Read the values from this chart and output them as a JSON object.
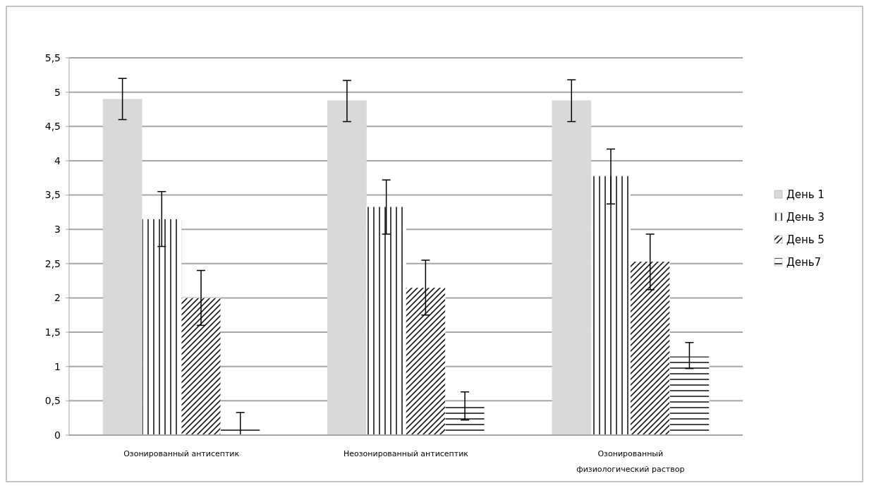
{
  "chart_data": {
    "type": "bar",
    "categories": [
      "Озонированный антисептик",
      "Неозонированный антисептик",
      "Озонированный физиологический раствор"
    ],
    "series": [
      {
        "name": "День 1",
        "color": "#d9d9d9",
        "values": [
          4.9,
          4.88,
          4.88
        ],
        "errors": [
          [
            4.6,
            5.2
          ],
          [
            4.57,
            5.17
          ],
          [
            4.57,
            5.18
          ]
        ]
      },
      {
        "name": "День 3",
        "color": "#ffffff",
        "values": [
          3.15,
          3.33,
          3.78
        ],
        "errors": [
          [
            2.75,
            3.55
          ],
          [
            2.93,
            3.72
          ],
          [
            3.37,
            4.17
          ]
        ]
      },
      {
        "name": "День 5",
        "color": "#ffffff",
        "values": [
          2.0,
          2.15,
          2.53
        ],
        "errors": [
          [
            1.6,
            2.4
          ],
          [
            1.75,
            2.55
          ],
          [
            2.12,
            2.93
          ]
        ]
      },
      {
        "name": "День7",
        "color": "#ffffff",
        "values": [
          0.1,
          0.42,
          1.15
        ],
        "errors": [
          [
            0,
            0.33
          ],
          [
            0.22,
            0.63
          ],
          [
            0.97,
            1.35
          ]
        ]
      }
    ],
    "ylim": [
      0,
      5.5
    ],
    "yticks": [
      0,
      {
        "value": 0.5,
        "label": "0,5"
      },
      1,
      {
        "value": 1.5,
        "label": "1,5"
      },
      2,
      {
        "value": 2.5,
        "label": "2,5"
      },
      3,
      {
        "value": 3.5,
        "label": "3,5"
      },
      4,
      {
        "value": 4.5,
        "label": "4,5"
      },
      5,
      {
        "value": 5.5,
        "label": "5,5"
      }
    ],
    "grid": "y",
    "legend": "right"
  }
}
